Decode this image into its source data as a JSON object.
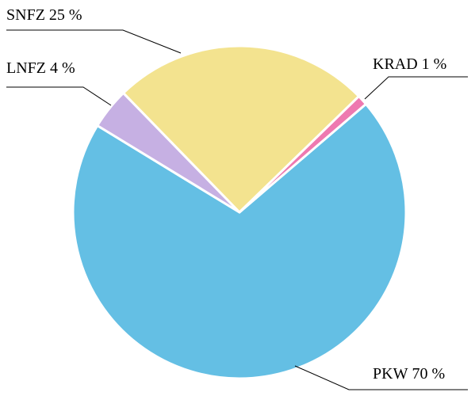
{
  "chart_data": {
    "type": "pie",
    "categories": [
      "PKW",
      "LNFZ",
      "SNFZ",
      "KRAD"
    ],
    "values": [
      70,
      4,
      25,
      1
    ],
    "value_labels": [
      "70 %",
      "4 %",
      "25 %",
      "1 %"
    ],
    "colors": [
      "#64bfe4",
      "#c6b0e3",
      "#f3e38f",
      "#ee79b0"
    ]
  }
}
